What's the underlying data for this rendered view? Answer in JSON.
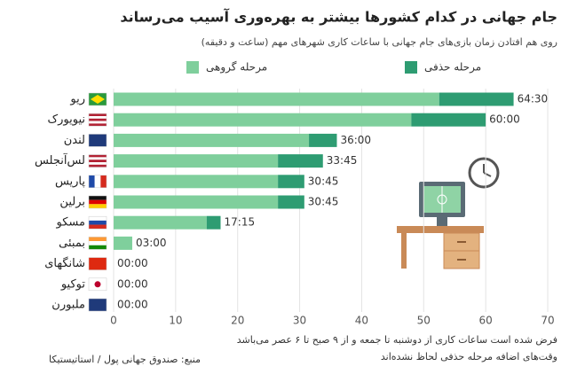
{
  "chart_data": {
    "type": "stacked-barh",
    "title": "جام جهانی در کدام کشورها بیشتر به بهره‌وری آسیب می‌رساند",
    "subtitle": "روی هم افتادن زمان بازی‌های جام جهانی با ساعات کاری شهرهای مهم (ساعت و دقیقه)",
    "categories": [
      "ریو",
      "نیویورک",
      "لندن",
      "لس‌آنجلس",
      "پاریس",
      "برلین",
      "مسکو",
      "بمبئی",
      "شانگهای",
      "توکیو",
      "ملبورن"
    ],
    "series": [
      {
        "name": "مرحله گروهی",
        "color": "#7fcf9c",
        "values": [
          52.5,
          48,
          31.5,
          26.5,
          26.5,
          26.5,
          15,
          3,
          0,
          0,
          0
        ]
      },
      {
        "name": "مرحله حذفی",
        "color": "#2e9c72",
        "values": [
          12,
          12,
          4.5,
          7.25,
          4.25,
          4.25,
          2.25,
          0,
          0,
          0,
          0
        ]
      }
    ],
    "totals": [
      64.5,
      60,
      36,
      33.75,
      30.75,
      30.75,
      17.25,
      3,
      0,
      0,
      0
    ],
    "total_labels": [
      "64:30",
      "60:00",
      "36:00",
      "33:45",
      "30:45",
      "30:45",
      "17:15",
      "03:00",
      "00:00",
      "00:00",
      "00:00"
    ],
    "xlim": [
      0,
      70
    ],
    "xticks": [
      0,
      10,
      20,
      30,
      40,
      50,
      60,
      70
    ],
    "grid": true,
    "notes": [
      "فرض شده است ساعات کاری از دوشنبه تا جمعه و از ۹ صبح تا ۶ عصر می‌باشد",
      "وقت‌های اضافه مرحله حذفی لحاظ نشده‌اند"
    ],
    "source": "منبع: صندوق جهانی پول / استاتیستیکا"
  }
}
